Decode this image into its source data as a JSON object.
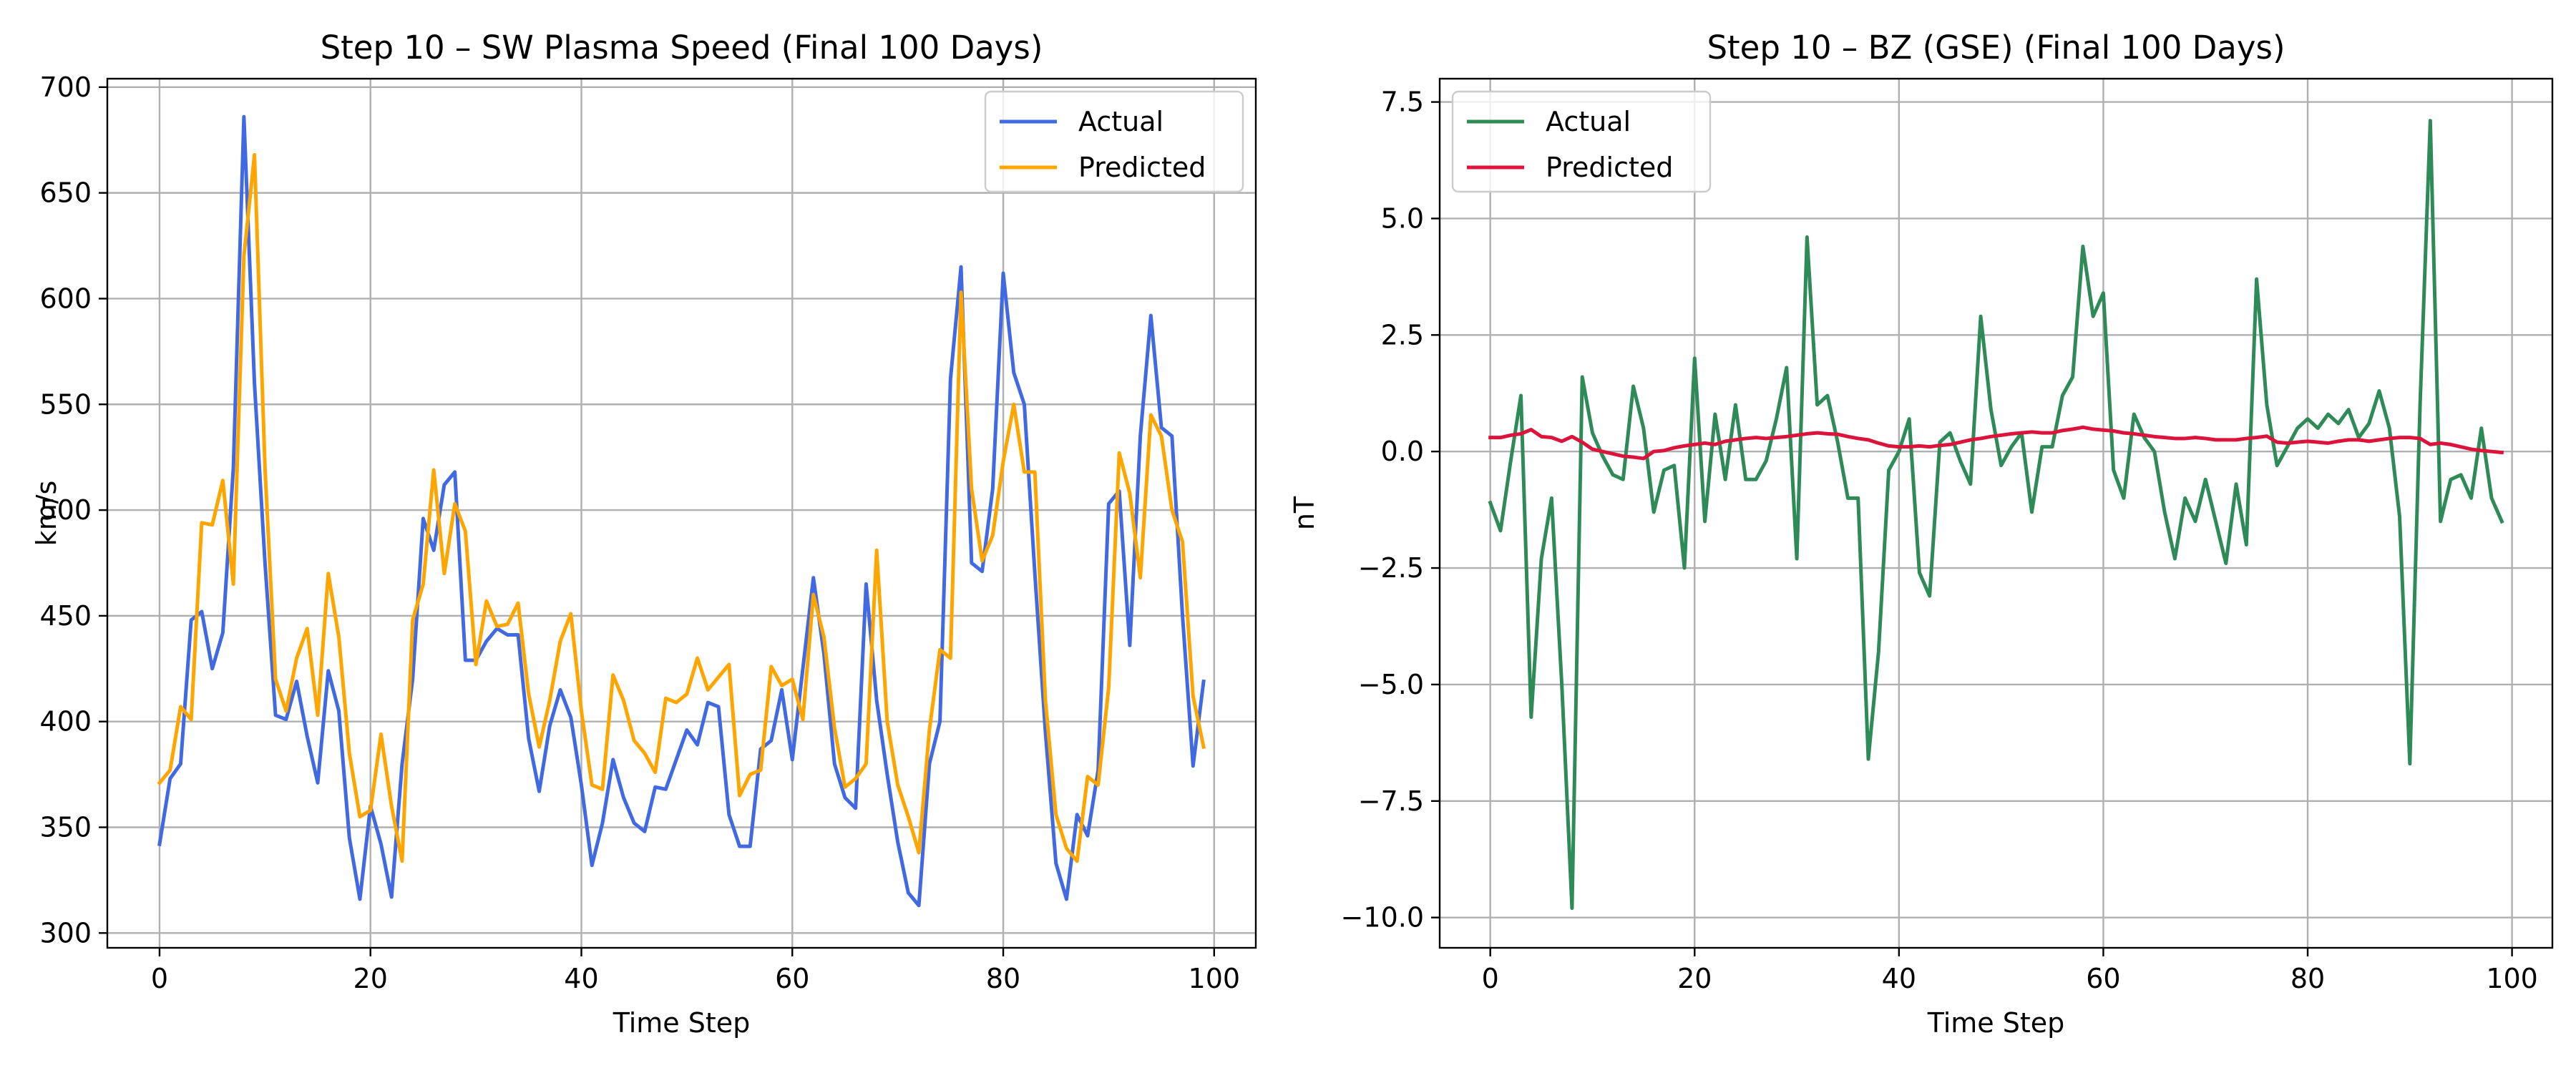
{
  "chart_data": [
    {
      "type": "line",
      "title": "Step 10 – SW Plasma Speed (Final 100 Days)",
      "xlabel": "Time Step",
      "ylabel": "km/s",
      "xlim": [
        -4.95,
        103.95
      ],
      "ylim": [
        293,
        704
      ],
      "xticks": [
        0,
        20,
        40,
        60,
        80,
        100
      ],
      "yticks": [
        300,
        350,
        400,
        450,
        500,
        550,
        600,
        650,
        700
      ],
      "grid": true,
      "legend_position": "top-right",
      "series": [
        {
          "name": "Actual",
          "color": "#4169e1",
          "values": [
            342,
            373,
            380,
            448,
            452,
            425,
            442,
            520,
            686,
            560,
            475,
            403,
            401,
            419,
            393,
            371,
            424,
            405,
            345,
            316,
            360,
            342,
            317,
            380,
            420,
            496,
            481,
            512,
            518,
            429,
            429,
            438,
            444,
            441,
            441,
            392,
            367,
            398,
            415,
            402,
            370,
            332,
            352,
            382,
            364,
            352,
            348,
            369,
            368,
            382,
            396,
            389,
            409,
            407,
            356,
            341,
            341,
            387,
            391,
            415,
            382,
            425,
            468,
            432,
            380,
            364,
            359,
            465,
            410,
            375,
            343,
            319,
            313,
            380,
            400,
            562,
            615,
            475,
            471,
            510,
            612,
            565,
            550,
            470,
            395,
            333,
            316,
            356,
            346,
            377,
            503,
            509,
            436,
            535,
            592,
            539,
            535,
            450,
            379,
            419
          ]
        },
        {
          "name": "Predicted",
          "color": "#ffa500",
          "values": [
            371,
            377,
            407,
            401,
            494,
            493,
            514,
            465,
            620,
            668,
            520,
            420,
            405,
            430,
            444,
            403,
            470,
            440,
            385,
            355,
            358,
            394,
            360,
            334,
            448,
            465,
            519,
            470,
            503,
            490,
            427,
            457,
            445,
            446,
            456,
            413,
            388,
            410,
            438,
            451,
            405,
            370,
            368,
            422,
            410,
            391,
            385,
            376,
            411,
            409,
            413,
            430,
            415,
            421,
            427,
            365,
            375,
            377,
            426,
            417,
            420,
            401,
            460,
            440,
            397,
            369,
            373,
            380,
            481,
            400,
            370,
            355,
            338,
            396,
            434,
            430,
            603,
            510,
            476,
            488,
            523,
            550,
            518,
            518,
            410,
            356,
            340,
            334,
            374,
            370,
            416,
            527,
            508,
            468,
            545,
            535,
            500,
            485,
            412,
            388
          ]
        }
      ]
    },
    {
      "type": "line",
      "title": "Step 10 – BZ (GSE) (Final 100 Days)",
      "xlabel": "Time Step",
      "ylabel": "nT",
      "xlim": [
        -4.95,
        103.95
      ],
      "ylim": [
        -10.65,
        8.0
      ],
      "xticks": [
        0,
        20,
        40,
        60,
        80,
        100
      ],
      "yticks": [
        -10.0,
        -7.5,
        -5.0,
        -2.5,
        0.0,
        2.5,
        5.0,
        7.5
      ],
      "ytick_labels": [
        "−10.0",
        "−7.5",
        "−5.0",
        "−2.5",
        "0.0",
        "2.5",
        "5.0",
        "7.5"
      ],
      "grid": true,
      "legend_position": "top-left",
      "series": [
        {
          "name": "Actual",
          "color": "#2e8b57",
          "values": [
            -1.1,
            -1.7,
            -0.2,
            1.2,
            -5.7,
            -2.3,
            -1.0,
            -5.0,
            -9.8,
            1.6,
            0.4,
            -0.1,
            -0.5,
            -0.6,
            1.4,
            0.5,
            -1.3,
            -0.4,
            -0.3,
            -2.5,
            2.0,
            -1.5,
            0.8,
            -0.6,
            1.0,
            -0.6,
            -0.6,
            -0.2,
            0.7,
            1.8,
            -2.3,
            4.6,
            1.0,
            1.2,
            0.2,
            -1.0,
            -1.0,
            -6.6,
            -4.3,
            -0.4,
            0.0,
            0.7,
            -2.6,
            -3.1,
            0.2,
            0.4,
            -0.2,
            -0.7,
            2.9,
            0.9,
            -0.3,
            0.1,
            0.4,
            -1.3,
            0.1,
            0.1,
            1.2,
            1.6,
            4.4,
            2.9,
            3.4,
            -0.4,
            -1.0,
            0.8,
            0.3,
            0.0,
            -1.3,
            -2.3,
            -1.0,
            -1.5,
            -0.6,
            -1.5,
            -2.4,
            -0.7,
            -2.0,
            3.7,
            1.0,
            -0.3,
            0.1,
            0.5,
            0.7,
            0.5,
            0.8,
            0.6,
            0.9,
            0.3,
            0.6,
            1.3,
            0.5,
            -1.4,
            -6.7,
            1.0,
            7.1,
            -1.5,
            -0.6,
            -0.5,
            -1.0,
            0.5,
            -1.0,
            -1.5
          ]
        },
        {
          "name": "Predicted",
          "color": "#dc143c",
          "values": [
            0.3,
            0.3,
            0.35,
            0.38,
            0.47,
            0.32,
            0.3,
            0.22,
            0.32,
            0.2,
            0.05,
            0.0,
            -0.05,
            -0.1,
            -0.12,
            -0.15,
            0.0,
            0.02,
            0.08,
            0.12,
            0.15,
            0.18,
            0.15,
            0.22,
            0.25,
            0.28,
            0.3,
            0.28,
            0.3,
            0.32,
            0.35,
            0.38,
            0.4,
            0.38,
            0.37,
            0.32,
            0.28,
            0.25,
            0.18,
            0.12,
            0.1,
            0.1,
            0.12,
            0.1,
            0.13,
            0.15,
            0.2,
            0.25,
            0.28,
            0.32,
            0.35,
            0.38,
            0.4,
            0.42,
            0.4,
            0.4,
            0.45,
            0.48,
            0.52,
            0.48,
            0.46,
            0.44,
            0.4,
            0.38,
            0.35,
            0.32,
            0.3,
            0.28,
            0.28,
            0.3,
            0.28,
            0.25,
            0.25,
            0.25,
            0.28,
            0.3,
            0.33,
            0.2,
            0.18,
            0.2,
            0.22,
            0.2,
            0.18,
            0.22,
            0.25,
            0.25,
            0.22,
            0.25,
            0.28,
            0.3,
            0.3,
            0.28,
            0.15,
            0.18,
            0.15,
            0.1,
            0.05,
            0.02,
            0.0,
            -0.02
          ]
        }
      ]
    }
  ]
}
